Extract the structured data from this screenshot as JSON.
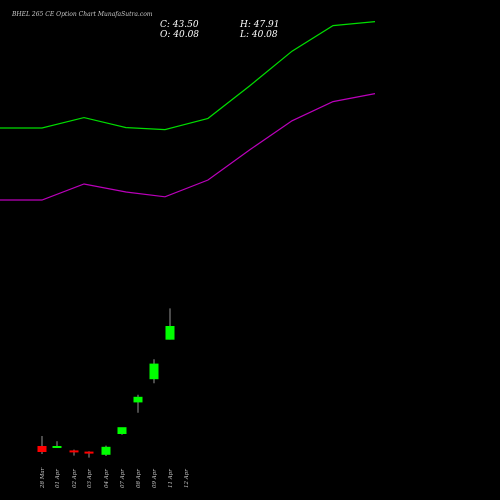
{
  "title": "BHEL 265 CE Option Chart MunafaSutra.com",
  "ohlc": {
    "close": "C: 43.50",
    "high": "H: 47.91",
    "open": "O: 40.08",
    "low": "L: 40.08"
  },
  "colors": {
    "background": "#000000",
    "up_candle": "#00ff00",
    "down_candle": "#ff0000",
    "upper_band": "#00dd00",
    "lower_band": "#bb00bb",
    "text": "#cccccc"
  },
  "chart_data": {
    "type": "candlestick",
    "title": "BHEL 265 CE Option Chart MunafaSutra.com",
    "grid": false,
    "categories": [
      "28 Mar",
      "01 Apr",
      "02 Apr",
      "03 Apr",
      "04 Apr",
      "07 Apr",
      "08 Apr",
      "09 Apr",
      "11 Apr",
      "12 Apr"
    ],
    "candles": [
      {
        "date": "28 Mar",
        "open": 13.5,
        "high": 16.0,
        "low": 11.5,
        "close": 12.0
      },
      {
        "date": "01 Apr",
        "open": 13.3,
        "high": 14.7,
        "low": 13.3,
        "close": 13.5
      },
      {
        "date": "02 Apr",
        "open": 12.4,
        "high": 12.6,
        "low": 11.1,
        "close": 12.3
      },
      {
        "date": "03 Apr",
        "open": 12.1,
        "high": 12.2,
        "low": 10.6,
        "close": 11.9
      },
      {
        "date": "04 Apr",
        "open": 11.3,
        "high": 13.6,
        "low": 11.0,
        "close": 13.3
      },
      {
        "date": "07 Apr",
        "open": 16.5,
        "high": 17.8,
        "low": 16.3,
        "close": 18.2
      },
      {
        "date": "08 Apr",
        "open": 24.4,
        "high": 26.3,
        "low": 21.8,
        "close": 25.8
      },
      {
        "date": "09 Apr",
        "open": 30.2,
        "high": 35.2,
        "low": 29.2,
        "close": 34.1
      },
      {
        "date": "11 Apr",
        "open": 40.08,
        "high": 47.91,
        "low": 40.08,
        "close": 43.5
      }
    ],
    "series": [
      {
        "x": [
          "00:00",
          "28 Mar",
          "01 Apr",
          "03 Apr",
          "04 Apr",
          "07 Apr",
          "08 Apr",
          "09 Apr",
          "11 Apr",
          "12 Apr"
        ],
        "values": [
          93.0,
          93.0,
          95.6,
          93.1,
          92.6,
          95.4,
          103.6,
          112.2,
          118.6,
          119.6
        ]
      },
      {
        "x": [
          "00:00",
          "28 Mar",
          "01 Apr",
          "03 Apr",
          "04 Apr",
          "07 Apr",
          "08 Apr",
          "09 Apr",
          "11 Apr",
          "12 Apr"
        ],
        "values": [
          75.0,
          75.0,
          79.0,
          77.0,
          75.8,
          80.0,
          87.6,
          94.8,
          99.6,
          101.6
        ]
      }
    ],
    "ylim": [
      0,
      120
    ]
  }
}
